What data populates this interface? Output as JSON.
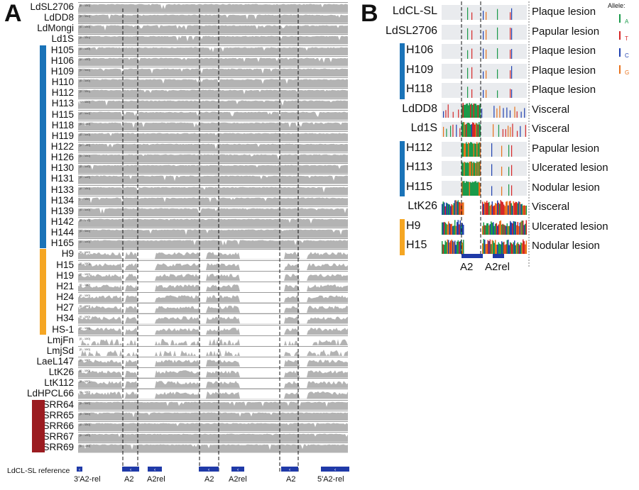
{
  "panel_a": {
    "letter": "A",
    "range_label": "[0 - 100]",
    "reference_label": "LdCL-SL reference",
    "samples": [
      {
        "name": "LdSL2706",
        "group": "none",
        "profile": "full"
      },
      {
        "name": "LdDD8",
        "group": "none",
        "profile": "full"
      },
      {
        "name": "LdMongi",
        "group": "none",
        "profile": "full"
      },
      {
        "name": "Ld1S",
        "group": "none",
        "profile": "full"
      },
      {
        "name": "H105",
        "group": "blue",
        "profile": "full"
      },
      {
        "name": "H106",
        "group": "blue",
        "profile": "full"
      },
      {
        "name": "H109",
        "group": "blue",
        "profile": "full"
      },
      {
        "name": "H110",
        "group": "blue",
        "profile": "full"
      },
      {
        "name": "H112",
        "group": "blue",
        "profile": "full"
      },
      {
        "name": "H113",
        "group": "blue",
        "profile": "full"
      },
      {
        "name": "H115",
        "group": "blue",
        "profile": "full"
      },
      {
        "name": "H118",
        "group": "blue",
        "profile": "full"
      },
      {
        "name": "H119",
        "group": "blue",
        "profile": "full"
      },
      {
        "name": "H122",
        "group": "blue",
        "profile": "full"
      },
      {
        "name": "H126",
        "group": "blue",
        "profile": "full"
      },
      {
        "name": "H130",
        "group": "blue",
        "profile": "full"
      },
      {
        "name": "H131",
        "group": "blue",
        "profile": "full"
      },
      {
        "name": "H133",
        "group": "blue",
        "profile": "full"
      },
      {
        "name": "H134",
        "group": "blue",
        "profile": "full"
      },
      {
        "name": "H139",
        "group": "blue",
        "profile": "full"
      },
      {
        "name": "H142",
        "group": "blue",
        "profile": "full"
      },
      {
        "name": "H144",
        "group": "blue",
        "profile": "full"
      },
      {
        "name": "H165",
        "group": "blue",
        "profile": "full"
      },
      {
        "name": "H9",
        "group": "orange",
        "profile": "gapped"
      },
      {
        "name": "H15",
        "group": "orange",
        "profile": "gapped"
      },
      {
        "name": "H19",
        "group": "orange",
        "profile": "gapped"
      },
      {
        "name": "H21",
        "group": "orange",
        "profile": "gapped"
      },
      {
        "name": "H24",
        "group": "orange",
        "profile": "gapped"
      },
      {
        "name": "H27",
        "group": "orange",
        "profile": "gapped"
      },
      {
        "name": "H34",
        "group": "orange",
        "profile": "gapped"
      },
      {
        "name": "HS-1",
        "group": "orange",
        "profile": "gapped"
      },
      {
        "name": "LmjFn",
        "group": "none",
        "profile": "sparse"
      },
      {
        "name": "LmjSd",
        "group": "none",
        "profile": "sparse"
      },
      {
        "name": "LaeL147",
        "group": "none",
        "profile": "gapped"
      },
      {
        "name": "LtK26",
        "group": "none",
        "profile": "gapped"
      },
      {
        "name": "LtK112",
        "group": "none",
        "profile": "gapped"
      },
      {
        "name": "LdHPCL66",
        "group": "none",
        "profile": "gapped"
      },
      {
        "name": "SRR64",
        "group": "red",
        "profile": "full"
      },
      {
        "name": "SRR65",
        "group": "red",
        "profile": "full"
      },
      {
        "name": "SRR66",
        "group": "red",
        "profile": "full"
      },
      {
        "name": "SRR67",
        "group": "red",
        "profile": "full"
      },
      {
        "name": "SRR69",
        "group": "red",
        "profile": "full"
      }
    ],
    "annotations": [
      "3'A2-rel",
      "A2",
      "A2rel",
      "A2",
      "A2rel",
      "A2",
      "5'A2-rel"
    ]
  },
  "panel_b": {
    "letter": "B",
    "allele_title": "Allele:",
    "alleles": [
      {
        "base": "A",
        "color": "#1a9a4a"
      },
      {
        "base": "T",
        "color": "#d62728"
      },
      {
        "base": "C",
        "color": "#2041b0"
      },
      {
        "base": "G",
        "color": "#e8721c"
      }
    ],
    "rows": [
      {
        "name": "LdCL-SL",
        "phenotype": "Plaque lesion",
        "group": "none",
        "profile": "ref"
      },
      {
        "name": "LdSL2706",
        "phenotype": "Papular lesion",
        "group": "none",
        "profile": "ref"
      },
      {
        "name": "H106",
        "phenotype": "Plaque lesion",
        "group": "blue",
        "profile": "ref"
      },
      {
        "name": "H109",
        "phenotype": "Plaque lesion",
        "group": "blue",
        "profile": "ref"
      },
      {
        "name": "H118",
        "phenotype": "Plaque lesion",
        "group": "blue",
        "profile": "ref"
      },
      {
        "name": "LdDD8",
        "phenotype": "Visceral",
        "group": "none",
        "profile": "dense"
      },
      {
        "name": "Ld1S",
        "phenotype": "Visceral",
        "group": "none",
        "profile": "dense"
      },
      {
        "name": "H112",
        "phenotype": "Papular lesion",
        "group": "blue",
        "profile": "green"
      },
      {
        "name": "H113",
        "phenotype": "Ulcerated lesion",
        "group": "blue",
        "profile": "green"
      },
      {
        "name": "H115",
        "phenotype": "Nodular lesion",
        "group": "blue",
        "profile": "green"
      },
      {
        "name": "LtK26",
        "phenotype": "Visceral",
        "group": "none",
        "profile": "variant"
      },
      {
        "name": "H9",
        "phenotype": "Ulcerated lesion",
        "group": "orange",
        "profile": "variant"
      },
      {
        "name": "H15",
        "phenotype": "Nodular lesion",
        "group": "orange",
        "profile": "variant"
      }
    ],
    "annotations": [
      "A2",
      "A2rel"
    ]
  },
  "colors": {
    "blue_group": "#1a73b8",
    "orange_group": "#f5a623",
    "red_group": "#9b1c20",
    "coverage": "#b3b3b3",
    "gene_block": "#1f3aa8"
  }
}
